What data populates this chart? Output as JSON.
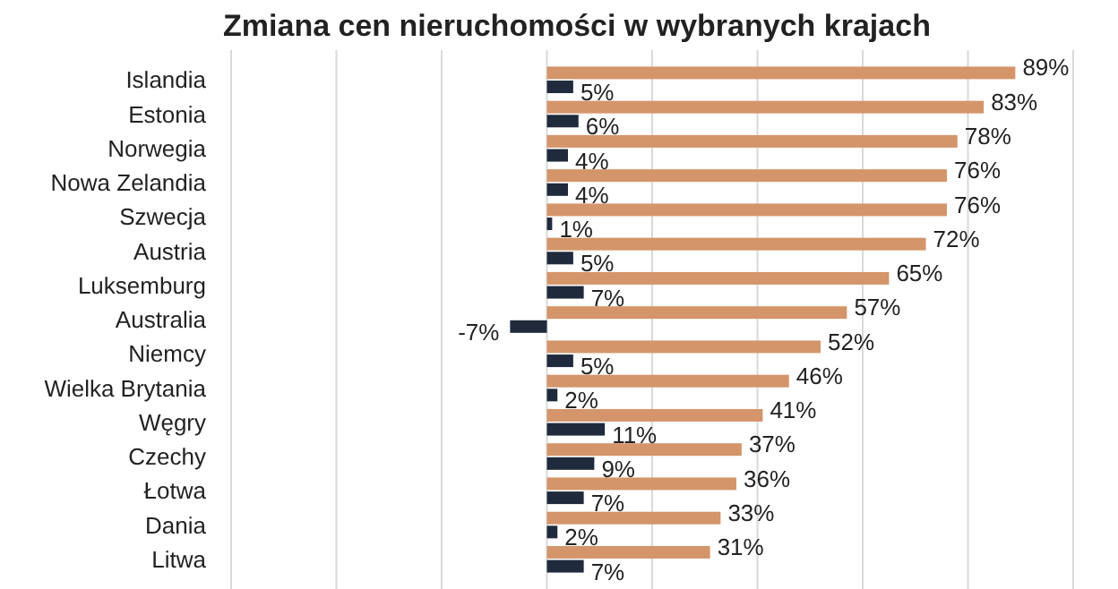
{
  "chart_data": {
    "type": "bar",
    "orientation": "horizontal",
    "title": "Zmiana cen nieruchomości w wybranych krajach",
    "categories": [
      "Islandia",
      "Estonia",
      "Norwegia",
      "Nowa Zelandia",
      "Szwecja",
      "Austria",
      "Luksemburg",
      "Australia",
      "Niemcy",
      "Wielka Brytania",
      "Węgry",
      "Czechy",
      "Łotwa",
      "Dania",
      "Litwa"
    ],
    "series": [
      {
        "color": "#d4956a",
        "values": [
          89,
          83,
          78,
          76,
          76,
          72,
          65,
          57,
          52,
          46,
          41,
          37,
          36,
          33,
          31
        ],
        "value_labels": [
          "89%",
          "83%",
          "78%",
          "76%",
          "76%",
          "72%",
          "65%",
          "57%",
          "52%",
          "46%",
          "41%",
          "37%",
          "36%",
          "33%",
          "31%"
        ]
      },
      {
        "color": "#1f2a3c",
        "values": [
          5,
          6,
          4,
          4,
          1,
          5,
          7,
          -7,
          5,
          2,
          11,
          9,
          7,
          2,
          7
        ],
        "value_labels": [
          "5%",
          "6%",
          "4%",
          "4%",
          "1%",
          "5%",
          "7%",
          "-7%",
          "5%",
          "2%",
          "11%",
          "9%",
          "7%",
          "2%",
          "7%"
        ]
      }
    ],
    "xlim": [
      -60,
      100
    ],
    "xticks": [
      {
        "value": -60,
        "label": null
      },
      {
        "value": -40,
        "label": null
      },
      {
        "value": -20,
        "label": null
      },
      {
        "value": 0,
        "label": null
      },
      {
        "value": 20,
        "label": null
      },
      {
        "value": 40,
        "label": null
      },
      {
        "value": 60,
        "label": null
      },
      {
        "value": 80,
        "label": null
      },
      {
        "value": 100,
        "label": null
      }
    ],
    "tick_labels": "y",
    "grid": "x"
  }
}
